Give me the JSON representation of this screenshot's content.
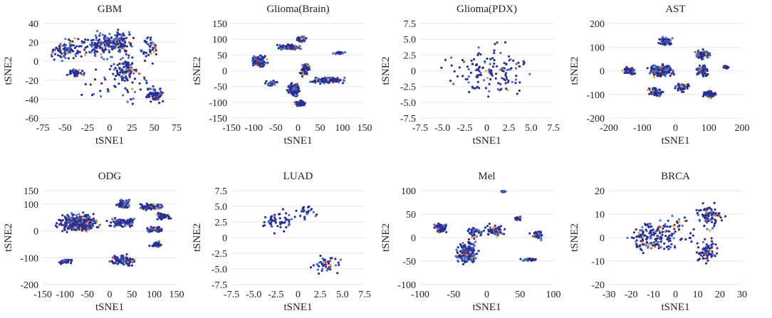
{
  "figure": {
    "panels": [
      {
        "title": "GBM",
        "xlabel": "tSNE1",
        "ylabel": "tSNE2",
        "xticks": [
          "-75",
          "-50",
          "-25",
          "0",
          "25",
          "50",
          "75"
        ],
        "yticks": [
          "40",
          "20",
          "0",
          "-20",
          "-40",
          "-60"
        ]
      },
      {
        "title": "Glioma(Brain)",
        "xlabel": "tSNE1",
        "ylabel": "tSNE2",
        "xticks": [
          "-150",
          "-100",
          "-50",
          "0",
          "50",
          "100",
          "150"
        ],
        "yticks": [
          "150",
          "100",
          "50",
          "0",
          "-50",
          "-100",
          "-150"
        ]
      },
      {
        "title": "Glioma(PDX)",
        "xlabel": "tSNE1",
        "ylabel": "tSNE2",
        "xticks": [
          "-7.5",
          "-5.0",
          "-2.5",
          "0",
          "2.5",
          "5.0",
          "7.5"
        ],
        "yticks": [
          "7.5",
          "5.0",
          "2.5",
          "0",
          "-2.5",
          "-5.0",
          "-7.5"
        ]
      },
      {
        "title": "AST",
        "xlabel": "tSNE1",
        "ylabel": "tSNE2",
        "xticks": [
          "-200",
          "-100",
          "0",
          "100",
          "200"
        ],
        "yticks": [
          "200",
          "100",
          "0",
          "-100",
          "-200"
        ]
      },
      {
        "title": "ODG",
        "xlabel": "tSNE1",
        "ylabel": "tSNE2",
        "xticks": [
          "-150",
          "-100",
          "-50",
          "0",
          "50",
          "100",
          "150"
        ],
        "yticks": [
          "150",
          "100",
          "0",
          "-100",
          "-200"
        ]
      },
      {
        "title": "LUAD",
        "xlabel": "tSNE1",
        "ylabel": "tSNE2",
        "xticks": [
          "-7.5",
          "-5.0",
          "-2.5",
          "0",
          "2.5",
          "5.0",
          "7.5"
        ],
        "yticks": [
          "7.5",
          "5.0",
          "2.5",
          "0",
          "-2.5",
          "-5.0",
          "-7.5"
        ]
      },
      {
        "title": "Mel",
        "xlabel": "tSNE1",
        "ylabel": "tSNE2",
        "xticks": [
          "-100",
          "-50",
          "0",
          "50",
          "100"
        ],
        "yticks": [
          "100",
          "50",
          "0",
          "-50",
          "-100"
        ]
      },
      {
        "title": "BRCA",
        "xlabel": "tSNE1",
        "ylabel": "tSNE2",
        "xticks": [
          "-30",
          "-20",
          "-10",
          "0",
          "10",
          "20",
          "30"
        ],
        "yticks": [
          "20",
          "10",
          "0",
          "-10",
          "-20"
        ]
      }
    ]
  },
  "colors": {
    "primary": "#2b2f8f",
    "secondary": "#4a72c4",
    "accent_red": "#d9452b",
    "accent_orange": "#f0a030"
  },
  "chart_data": [
    {
      "type": "scatter",
      "title": "GBM",
      "xlabel": "tSNE1",
      "ylabel": "tSNE2",
      "xlim": [
        -75,
        75
      ],
      "ylim": [
        -60,
        40
      ],
      "clusters": [
        {
          "cx": -48,
          "cy": 12,
          "sx": 12,
          "sy": 8,
          "n": 90
        },
        {
          "cx": -38,
          "cy": -12,
          "sx": 6,
          "sy": 3,
          "n": 40
        },
        {
          "cx": -8,
          "cy": 18,
          "sx": 12,
          "sy": 10,
          "n": 110
        },
        {
          "cx": 12,
          "cy": 20,
          "sx": 10,
          "sy": 8,
          "n": 90
        },
        {
          "cx": 18,
          "cy": -8,
          "sx": 8,
          "sy": 8,
          "n": 80
        },
        {
          "cx": 45,
          "cy": 15,
          "sx": 8,
          "sy": 7,
          "n": 40
        },
        {
          "cx": 50,
          "cy": -35,
          "sx": 6,
          "sy": 5,
          "n": 70
        },
        {
          "cx": 10,
          "cy": -20,
          "sx": 30,
          "sy": 15,
          "n": 60
        }
      ]
    },
    {
      "type": "scatter",
      "title": "Glioma(Brain)",
      "xlabel": "tSNE1",
      "ylabel": "tSNE2",
      "xlim": [
        -150,
        150
      ],
      "ylim": [
        -150,
        150
      ],
      "clusters": [
        {
          "cx": -88,
          "cy": 30,
          "sx": 10,
          "sy": 12,
          "n": 120
        },
        {
          "cx": -20,
          "cy": 75,
          "sx": 14,
          "sy": 5,
          "n": 110
        },
        {
          "cx": 8,
          "cy": 100,
          "sx": 6,
          "sy": 5,
          "n": 70
        },
        {
          "cx": 93,
          "cy": 57,
          "sx": 7,
          "sy": 2,
          "n": 35
        },
        {
          "cx": -10,
          "cy": -60,
          "sx": 9,
          "sy": 14,
          "n": 90
        },
        {
          "cx": 5,
          "cy": -103,
          "sx": 7,
          "sy": 6,
          "n": 70
        },
        {
          "cx": 70,
          "cy": -30,
          "sx": 22,
          "sy": 6,
          "n": 130
        },
        {
          "cx": 15,
          "cy": 5,
          "sx": 6,
          "sy": 14,
          "n": 70
        },
        {
          "cx": -60,
          "cy": -40,
          "sx": 8,
          "sy": 6,
          "n": 40
        }
      ]
    },
    {
      "type": "scatter",
      "title": "Glioma(PDX)",
      "xlabel": "tSNE1",
      "ylabel": "tSNE2",
      "xlim": [
        -7.5,
        7.5
      ],
      "ylim": [
        -7.5,
        7.5
      ],
      "clusters": [
        {
          "cx": 0,
          "cy": 0,
          "sx": 3.0,
          "sy": 2.4,
          "n": 140
        }
      ]
    },
    {
      "type": "scatter",
      "title": "AST",
      "xlabel": "tSNE1",
      "ylabel": "tSNE2",
      "xlim": [
        -200,
        200
      ],
      "ylim": [
        -200,
        200
      ],
      "clusters": [
        {
          "cx": -140,
          "cy": 0,
          "sx": 12,
          "sy": 8,
          "n": 60
        },
        {
          "cx": -45,
          "cy": 0,
          "sx": 22,
          "sy": 15,
          "n": 200
        },
        {
          "cx": -30,
          "cy": 125,
          "sx": 12,
          "sy": 12,
          "n": 80
        },
        {
          "cx": 80,
          "cy": 70,
          "sx": 14,
          "sy": 12,
          "n": 70
        },
        {
          "cx": 80,
          "cy": 0,
          "sx": 12,
          "sy": 15,
          "n": 80
        },
        {
          "cx": 150,
          "cy": 15,
          "sx": 5,
          "sy": 4,
          "n": 20
        },
        {
          "cx": -60,
          "cy": -90,
          "sx": 15,
          "sy": 12,
          "n": 60
        },
        {
          "cx": 100,
          "cy": -100,
          "sx": 12,
          "sy": 10,
          "n": 70
        },
        {
          "cx": 20,
          "cy": -70,
          "sx": 12,
          "sy": 12,
          "n": 50
        }
      ]
    },
    {
      "type": "scatter",
      "title": "ODG",
      "xlabel": "tSNE1",
      "ylabel": "tSNE2",
      "xlim": [
        -150,
        150
      ],
      "ylim": [
        -200,
        150
      ],
      "clusters": [
        {
          "cx": -70,
          "cy": 30,
          "sx": 28,
          "sy": 22,
          "n": 300
        },
        {
          "cx": 30,
          "cy": 100,
          "sx": 8,
          "sy": 10,
          "n": 60
        },
        {
          "cx": 90,
          "cy": 90,
          "sx": 15,
          "sy": 8,
          "n": 70
        },
        {
          "cx": 30,
          "cy": 30,
          "sx": 20,
          "sy": 10,
          "n": 90
        },
        {
          "cx": 120,
          "cy": 55,
          "sx": 10,
          "sy": 8,
          "n": 60
        },
        {
          "cx": 100,
          "cy": 5,
          "sx": 12,
          "sy": 6,
          "n": 50
        },
        {
          "cx": 105,
          "cy": -50,
          "sx": 10,
          "sy": 6,
          "n": 40
        },
        {
          "cx": -100,
          "cy": -115,
          "sx": 10,
          "sy": 6,
          "n": 40
        },
        {
          "cx": 30,
          "cy": -110,
          "sx": 20,
          "sy": 12,
          "n": 90
        }
      ]
    },
    {
      "type": "scatter",
      "title": "LUAD",
      "xlabel": "tSNE1",
      "ylabel": "tSNE2",
      "xlim": [
        -7.5,
        7.5
      ],
      "ylim": [
        -7.5,
        7.5
      ],
      "clusters": [
        {
          "cx": -2.3,
          "cy": 2.8,
          "sx": 1.3,
          "sy": 1.2,
          "n": 50
        },
        {
          "cx": 1.0,
          "cy": 4.2,
          "sx": 1.0,
          "sy": 0.8,
          "n": 25
        },
        {
          "cx": 3.0,
          "cy": -4.2,
          "sx": 1.0,
          "sy": 0.9,
          "n": 45
        }
      ]
    },
    {
      "type": "scatter",
      "title": "Mel",
      "xlabel": "tSNE1",
      "ylabel": "tSNE2",
      "xlim": [
        -100,
        100
      ],
      "ylim": [
        -100,
        100
      ],
      "clusters": [
        {
          "cx": -70,
          "cy": 20,
          "sx": 6,
          "sy": 6,
          "n": 60
        },
        {
          "cx": -30,
          "cy": -30,
          "sx": 10,
          "sy": 15,
          "n": 160
        },
        {
          "cx": -20,
          "cy": 10,
          "sx": 7,
          "sy": 8,
          "n": 50
        },
        {
          "cx": 10,
          "cy": 15,
          "sx": 10,
          "sy": 8,
          "n": 60
        },
        {
          "cx": 25,
          "cy": 100,
          "sx": 3,
          "sy": 2,
          "n": 25
        },
        {
          "cx": 48,
          "cy": 40,
          "sx": 4,
          "sy": 3,
          "n": 25
        },
        {
          "cx": 75,
          "cy": 5,
          "sx": 6,
          "sy": 6,
          "n": 40
        },
        {
          "cx": 65,
          "cy": -47,
          "sx": 8,
          "sy": 2,
          "n": 35
        }
      ]
    },
    {
      "type": "scatter",
      "title": "BRCA",
      "xlabel": "tSNE1",
      "ylabel": "tSNE2",
      "xlim": [
        -30,
        30
      ],
      "ylim": [
        -20,
        20
      ],
      "clusters": [
        {
          "cx": -10,
          "cy": 0,
          "sx": 7,
          "sy": 4,
          "n": 150
        },
        {
          "cx": 15,
          "cy": 9,
          "sx": 4,
          "sy": 3,
          "n": 80
        },
        {
          "cx": 14,
          "cy": -6,
          "sx": 3,
          "sy": 3,
          "n": 70
        },
        {
          "cx": 0,
          "cy": 3,
          "sx": 6,
          "sy": 5,
          "n": 40
        }
      ]
    }
  ]
}
